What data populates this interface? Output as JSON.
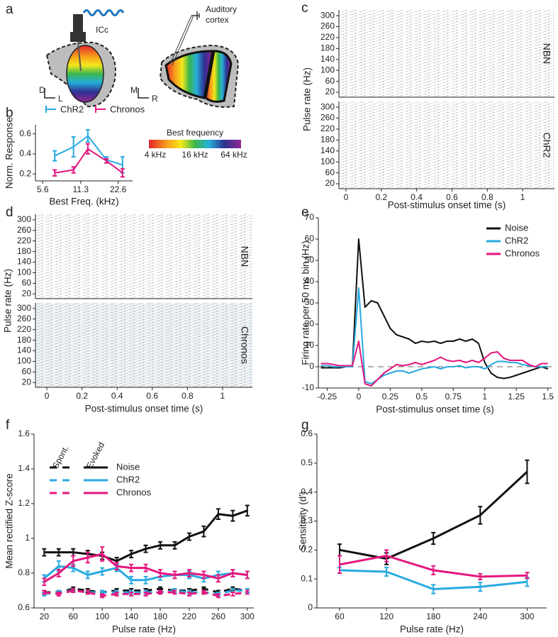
{
  "schematic": {
    "panel": "a",
    "icc_label": "ICc",
    "cortex_label": [
      "Auditory",
      "cortex"
    ],
    "axes_left": [
      "D",
      "L"
    ],
    "axes_right": [
      "M",
      "R"
    ],
    "colorbar": {
      "title": "Best frequency",
      "labels": [
        "4 kHz",
        "16 kHz",
        "64 kHz"
      ]
    }
  },
  "chart_data": [
    {
      "panel": "b",
      "type": "line",
      "xlabel": "Best Freq. (kHz)",
      "ylabel": "Norm. Response",
      "xscale": "log",
      "x": [
        7,
        9.9,
        12.9,
        18.2,
        24.5
      ],
      "xlim": [
        4.9,
        29.5
      ],
      "xticks": [
        5.6,
        11.3,
        22.6
      ],
      "ylim": [
        0.13,
        0.69
      ],
      "yticks": [
        0.2,
        0.4,
        0.6
      ],
      "legend": "top",
      "series": [
        {
          "name": "ChR2",
          "color": "#29aae1",
          "values": [
            0.38,
            0.47,
            0.58,
            0.34,
            0.29
          ],
          "errors": [
            0.05,
            0.1,
            0.06,
            0.03,
            0.08
          ]
        },
        {
          "name": "Chronos",
          "color": "#e5177e",
          "values": [
            0.21,
            0.24,
            0.45,
            0.33,
            0.21
          ],
          "errors": [
            0.03,
            0.03,
            0.05,
            0.02,
            0.04
          ]
        }
      ]
    },
    {
      "panel": "c",
      "type": "raster",
      "xlabel": "Post-stimulus onset time (s)",
      "ylabel": "Pulse rate (Hz)",
      "xlim": [
        -0.04,
        1.18
      ],
      "xticks": [
        0,
        0.2,
        0.4,
        0.6,
        0.8,
        1
      ],
      "ylim": [
        2,
        321
      ],
      "yticks": [
        20,
        60,
        100,
        140,
        180,
        220,
        260,
        300
      ],
      "panels": [
        {
          "label": "NBN",
          "color": "#222222",
          "background": "#ffffff"
        },
        {
          "label": "ChR2",
          "color": "#29aae1",
          "background": "#ffffff"
        }
      ]
    },
    {
      "panel": "d",
      "type": "raster",
      "xlabel": "Post-stimulus onset time (s)",
      "ylabel": "Pulse rate (Hz)",
      "xlim": [
        -0.065,
        1.17
      ],
      "xticks": [
        0,
        0.2,
        0.4,
        0.6,
        0.8,
        1
      ],
      "ylim": [
        2,
        321
      ],
      "yticks": [
        20,
        60,
        100,
        140,
        180,
        220,
        260,
        300
      ],
      "panels": [
        {
          "label": "NBN",
          "color": "#222222",
          "background": "#ffffff"
        },
        {
          "label": "Chronos",
          "color": "#e5177e",
          "background": "#eef4f8"
        }
      ]
    },
    {
      "panel": "e",
      "type": "line",
      "xlabel": "Post-stimulus onset time (s)",
      "ylabel": "Firing rate per 50 ms bin (Hz)",
      "x": [
        -0.3,
        -0.25,
        -0.2,
        -0.15,
        -0.1,
        -0.05,
        0,
        0.05,
        0.1,
        0.15,
        0.2,
        0.25,
        0.3,
        0.35,
        0.4,
        0.45,
        0.5,
        0.55,
        0.6,
        0.65,
        0.7,
        0.75,
        0.8,
        0.85,
        0.9,
        0.95,
        1,
        1.05,
        1.1,
        1.15,
        1.2,
        1.25,
        1.3,
        1.35,
        1.4,
        1.45,
        1.5
      ],
      "xlim": [
        -0.32,
        1.53
      ],
      "xticks": [
        -0.25,
        0,
        0.25,
        0.5,
        0.75,
        1,
        1.25,
        1.5
      ],
      "ylim": [
        -10,
        70
      ],
      "yticks": [
        -10,
        0,
        10,
        20,
        30,
        40,
        50,
        60,
        70
      ],
      "hline": 0,
      "legend": "upper right",
      "series": [
        {
          "name": "Noise",
          "color": "#111111",
          "values": [
            -0.5,
            -0.5,
            -0.5,
            -0.5,
            0,
            0,
            60,
            28,
            31,
            30,
            24,
            18,
            15,
            14,
            13,
            11,
            12,
            11.5,
            12,
            11,
            12,
            12,
            13,
            12,
            13,
            11,
            2,
            -3,
            -5,
            -5.5,
            -5,
            -4,
            -3,
            -2,
            -1,
            0,
            -1
          ]
        },
        {
          "name": "ChR2",
          "color": "#29aae1",
          "values": [
            0.5,
            0.5,
            0,
            0,
            0,
            0,
            37,
            -7,
            -8,
            -6,
            -4,
            -3,
            -2,
            -2,
            -3,
            -2,
            -1,
            -0.5,
            0,
            -1,
            0,
            0,
            0.5,
            -0.5,
            0,
            0,
            -1,
            1,
            2.5,
            2.5,
            2,
            2,
            1,
            0.5,
            0,
            0,
            0
          ]
        },
        {
          "name": "Chronos",
          "color": "#e5177e",
          "values": [
            1.5,
            1.5,
            1,
            0.5,
            0.5,
            0.5,
            12,
            -8,
            -9,
            -6,
            -3,
            -1,
            1,
            0.5,
            1,
            2,
            1,
            2,
            3,
            4.5,
            3,
            2.5,
            3,
            2,
            3,
            2,
            4,
            6.5,
            7,
            4,
            3,
            3,
            3,
            1,
            0,
            1.5,
            1.5
          ]
        }
      ]
    },
    {
      "panel": "f",
      "type": "line",
      "xlabel": "Pulse rate (Hz)",
      "ylabel": "Mean rectified Z-score",
      "x": [
        20,
        40,
        60,
        80,
        100,
        120,
        140,
        160,
        180,
        200,
        220,
        240,
        260,
        280,
        300
      ],
      "xlim": [
        6,
        309
      ],
      "xticks": [
        20,
        60,
        100,
        140,
        180,
        220,
        260,
        300
      ],
      "ylim": [
        0.6,
        1.6
      ],
      "yticks": [
        0.6,
        0.8,
        1,
        1.2,
        1.4,
        1.6
      ],
      "legend": "upper left",
      "conditions": [
        {
          "label": "Spont.",
          "dashed": true
        },
        {
          "label": "Evoked",
          "dashed": false
        }
      ],
      "series": [
        {
          "name": "Noise",
          "color": "#111111",
          "values": [
            [
              0.69,
              0.69,
              0.71,
              0.7,
              0.69,
              0.7,
              0.7,
              0.7,
              0.71,
              0.7,
              0.7,
              0.71,
              0.69,
              0.71,
              0.7
            ],
            [
              0.92,
              0.92,
              0.92,
              0.91,
              0.9,
              0.87,
              0.91,
              0.94,
              0.96,
              0.96,
              1.01,
              1.04,
              1.14,
              1.13,
              1.16
            ]
          ],
          "errors": [
            [
              0.01,
              0.01,
              0.01,
              0.01,
              0.01,
              0.01,
              0.01,
              0.01,
              0.01,
              0.01,
              0.01,
              0.01,
              0.01,
              0.01,
              0.01
            ],
            [
              0.02,
              0.02,
              0.02,
              0.02,
              0.02,
              0.02,
              0.02,
              0.02,
              0.02,
              0.02,
              0.02,
              0.03,
              0.03,
              0.03,
              0.03
            ]
          ]
        },
        {
          "name": "ChR2",
          "color": "#29aae1",
          "values": [
            [
              0.68,
              0.69,
              0.7,
              0.69,
              0.69,
              0.69,
              0.69,
              0.69,
              0.69,
              0.7,
              0.69,
              0.69,
              0.68,
              0.7,
              0.7
            ],
            [
              0.77,
              0.84,
              0.83,
              0.79,
              0.81,
              0.83,
              0.76,
              0.76,
              0.78,
              0.79,
              0.79,
              0.77,
              0.79,
              0.8,
              0.79
            ]
          ],
          "errors": [
            [
              0.01,
              0.01,
              0.01,
              0.01,
              0.01,
              0.01,
              0.01,
              0.01,
              0.01,
              0.01,
              0.01,
              0.01,
              0.01,
              0.01,
              0.01
            ],
            [
              0.02,
              0.03,
              0.02,
              0.02,
              0.02,
              0.02,
              0.02,
              0.02,
              0.02,
              0.02,
              0.02,
              0.02,
              0.02,
              0.02,
              0.02
            ]
          ]
        },
        {
          "name": "Chronos",
          "color": "#e5177e",
          "values": [
            [
              0.69,
              0.68,
              0.7,
              0.69,
              0.67,
              0.68,
              0.68,
              0.68,
              0.69,
              0.69,
              0.68,
              0.69,
              0.67,
              0.68,
              0.69
            ],
            [
              0.75,
              0.8,
              0.87,
              0.89,
              0.91,
              0.84,
              0.83,
              0.83,
              0.8,
              0.79,
              0.8,
              0.79,
              0.77,
              0.8,
              0.79
            ]
          ],
          "errors": [
            [
              0.01,
              0.01,
              0.01,
              0.01,
              0.01,
              0.01,
              0.01,
              0.01,
              0.01,
              0.01,
              0.01,
              0.01,
              0.01,
              0.01,
              0.01
            ],
            [
              0.02,
              0.02,
              0.03,
              0.03,
              0.04,
              0.02,
              0.02,
              0.02,
              0.02,
              0.02,
              0.02,
              0.02,
              0.02,
              0.02,
              0.02
            ]
          ]
        }
      ]
    },
    {
      "panel": "g",
      "type": "line",
      "xlabel": "Pulse rate (Hz)",
      "ylabel": "Sensitivity (d')",
      "x": [
        60,
        120,
        180,
        240,
        300
      ],
      "xlim": [
        31,
        325
      ],
      "xticks": [
        60,
        120,
        180,
        240,
        300
      ],
      "ylim": [
        0,
        0.6
      ],
      "yticks": [
        0,
        0.1,
        0.2,
        0.3,
        0.4,
        0.5,
        0.6
      ],
      "series": [
        {
          "name": "Noise",
          "color": "#111111",
          "values": [
            0.2,
            0.17,
            0.24,
            0.32,
            0.47
          ],
          "errors": [
            0.02,
            0.02,
            0.02,
            0.03,
            0.04
          ]
        },
        {
          "name": "ChR2",
          "color": "#29aae1",
          "values": [
            0.13,
            0.125,
            0.065,
            0.073,
            0.09
          ],
          "errors": [
            0.01,
            0.015,
            0.015,
            0.015,
            0.015
          ]
        },
        {
          "name": "Chronos",
          "color": "#e5177e",
          "values": [
            0.15,
            0.18,
            0.13,
            0.108,
            0.112
          ],
          "errors": [
            0.03,
            0.02,
            0.015,
            0.01,
            0.01
          ]
        }
      ]
    }
  ]
}
